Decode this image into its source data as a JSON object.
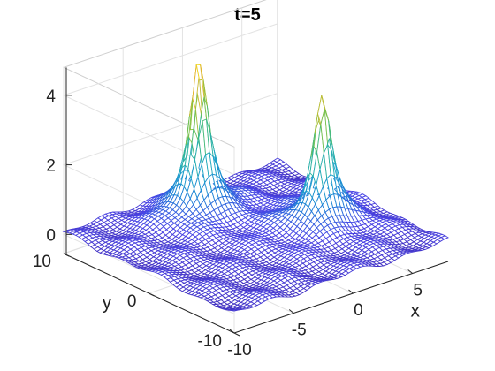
{
  "chart_data": {
    "type": "surface",
    "title": "t=5",
    "xlabel": "x",
    "ylabel": "y",
    "zlabel": "",
    "xlim": [
      -10,
      8
    ],
    "ylim": [
      -10,
      10
    ],
    "zlim": [
      0,
      4.8
    ],
    "x_ticks": [
      -10,
      -5,
      0,
      5
    ],
    "y_ticks": [
      -10,
      0,
      10
    ],
    "z_ticks": [
      0,
      2,
      4
    ],
    "grid": true,
    "colormap": [
      "#3e26a8",
      "#4a44e6",
      "#1e80d8",
      "#1fa6c8",
      "#33b891",
      "#8cc33b",
      "#e6b62f",
      "#f9fb15"
    ],
    "peaks": [
      {
        "x": -1.5,
        "y": 6.0,
        "height": 4.5
      },
      {
        "x": 3.5,
        "y": -1.5,
        "height": 3.8
      }
    ]
  }
}
